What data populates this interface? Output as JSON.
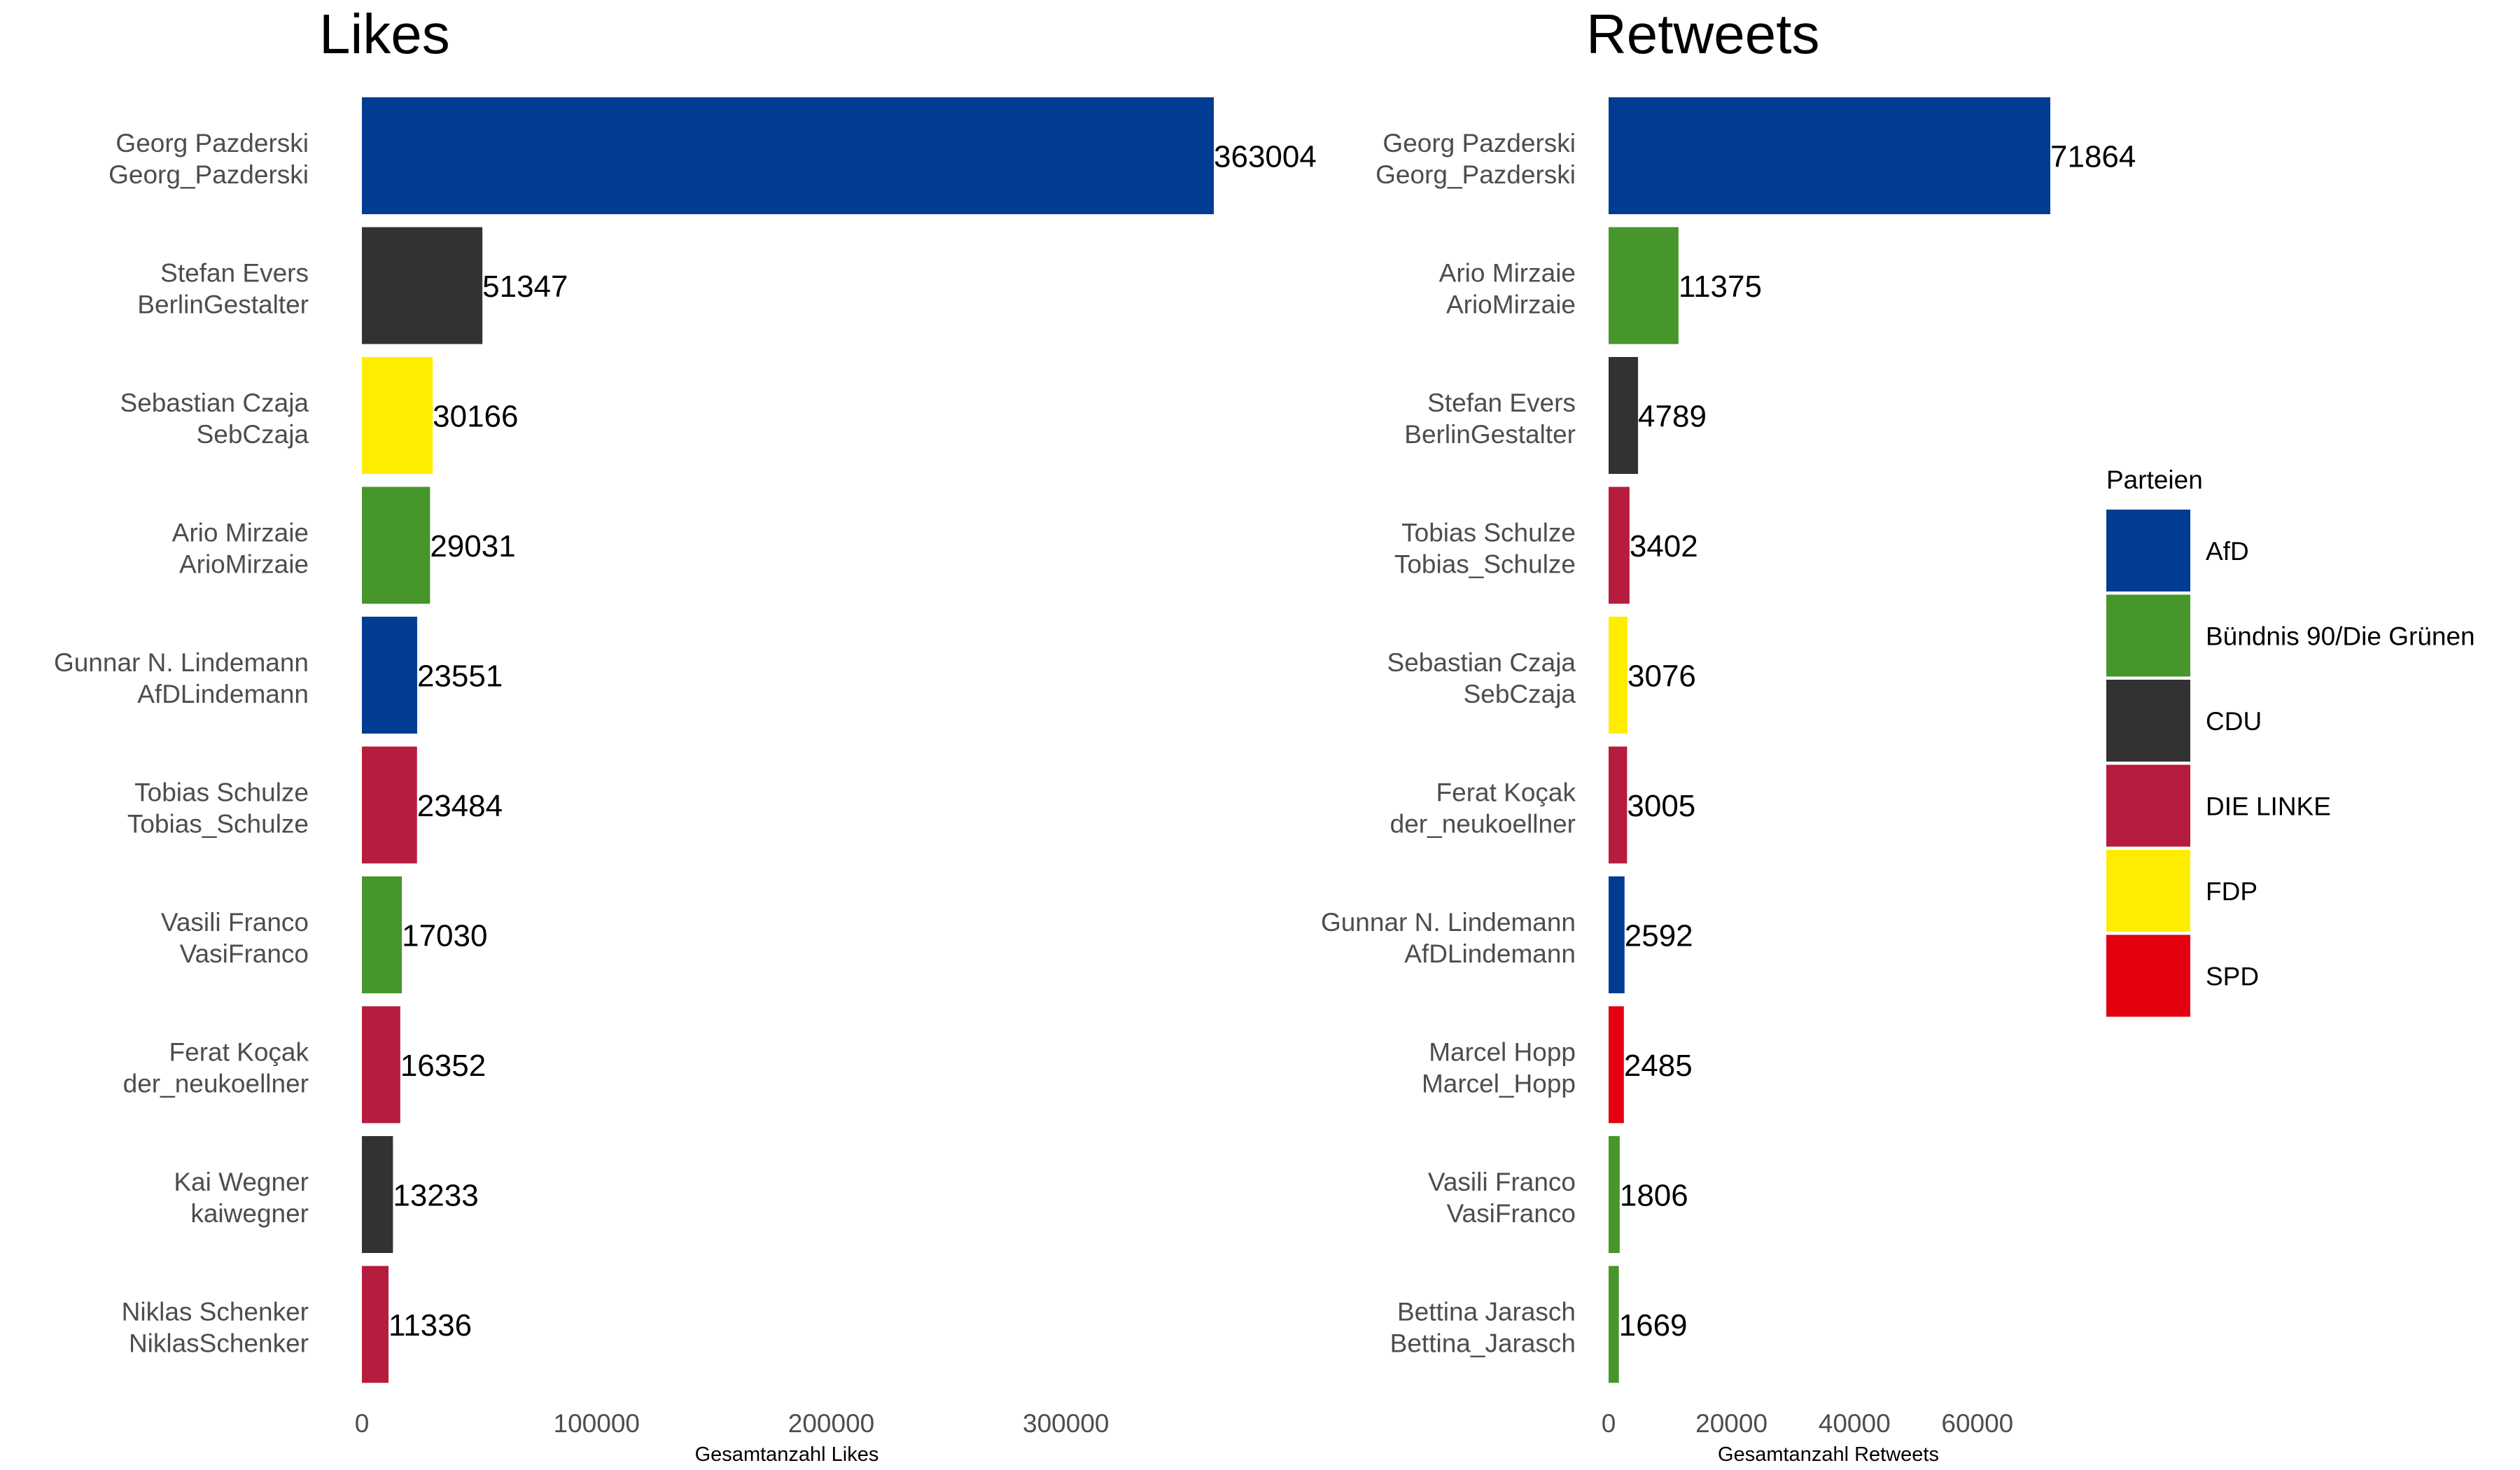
{
  "party_colors": {
    "AfD": "#003C91",
    "Bündnis 90/Die Grünen": "#46962B",
    "CDU": "#323232",
    "DIE LINKE": "#B61C3E",
    "FDP": "#FFED00",
    "SPD": "#E3000F"
  },
  "legend": {
    "title": "Parteien",
    "items": [
      "AfD",
      "Bündnis 90/Die Grünen",
      "CDU",
      "DIE LINKE",
      "FDP",
      "SPD"
    ]
  },
  "chart_data": [
    {
      "type": "bar",
      "orientation": "horizontal",
      "title": "Likes",
      "xlabel": "Gesamtanzahl Likes",
      "xlim": [
        0,
        363004
      ],
      "xticks": [
        0,
        100000,
        200000,
        300000
      ],
      "bars": [
        {
          "name": "Georg Pazderski",
          "handle": "Georg_Pazderski",
          "party": "AfD",
          "value": 363004
        },
        {
          "name": "Stefan Evers",
          "handle": "BerlinGestalter",
          "party": "CDU",
          "value": 51347
        },
        {
          "name": "Sebastian Czaja",
          "handle": "SebCzaja",
          "party": "FDP",
          "value": 30166
        },
        {
          "name": "Ario Mirzaie",
          "handle": "ArioMirzaie",
          "party": "Bündnis 90/Die Grünen",
          "value": 29031
        },
        {
          "name": "Gunnar N. Lindemann",
          "handle": "AfDLindemann",
          "party": "AfD",
          "value": 23551
        },
        {
          "name": "Tobias Schulze",
          "handle": "Tobias_Schulze",
          "party": "DIE LINKE",
          "value": 23484
        },
        {
          "name": "Vasili Franco",
          "handle": "VasiFranco",
          "party": "Bündnis 90/Die Grünen",
          "value": 17030
        },
        {
          "name": "Ferat Koçak",
          "handle": "der_neukoellner",
          "party": "DIE LINKE",
          "value": 16352
        },
        {
          "name": "Kai Wegner",
          "handle": "kaiwegner",
          "party": "CDU",
          "value": 13233
        },
        {
          "name": "Niklas Schenker",
          "handle": "NiklasSchenker",
          "party": "DIE LINKE",
          "value": 11336
        }
      ]
    },
    {
      "type": "bar",
      "orientation": "horizontal",
      "title": "Retweets",
      "xlabel": "Gesamtanzahl Retweets",
      "xlim": [
        0,
        71864
      ],
      "xticks": [
        0,
        20000,
        40000,
        60000
      ],
      "bars": [
        {
          "name": "Georg Pazderski",
          "handle": "Georg_Pazderski",
          "party": "AfD",
          "value": 71864
        },
        {
          "name": "Ario Mirzaie",
          "handle": "ArioMirzaie",
          "party": "Bündnis 90/Die Grünen",
          "value": 11375
        },
        {
          "name": "Stefan Evers",
          "handle": "BerlinGestalter",
          "party": "CDU",
          "value": 4789
        },
        {
          "name": "Tobias Schulze",
          "handle": "Tobias_Schulze",
          "party": "DIE LINKE",
          "value": 3402
        },
        {
          "name": "Sebastian Czaja",
          "handle": "SebCzaja",
          "party": "FDP",
          "value": 3076
        },
        {
          "name": "Ferat Koçak",
          "handle": "der_neukoellner",
          "party": "DIE LINKE",
          "value": 3005
        },
        {
          "name": "Gunnar N. Lindemann",
          "handle": "AfDLindemann",
          "party": "AfD",
          "value": 2592
        },
        {
          "name": "Marcel Hopp",
          "handle": "Marcel_Hopp",
          "party": "SPD",
          "value": 2485
        },
        {
          "name": "Vasili Franco",
          "handle": "VasiFranco",
          "party": "Bündnis 90/Die Grünen",
          "value": 1806
        },
        {
          "name": "Bettina Jarasch",
          "handle": "Bettina_Jarasch",
          "party": "Bündnis 90/Die Grünen",
          "value": 1669
        }
      ]
    }
  ]
}
